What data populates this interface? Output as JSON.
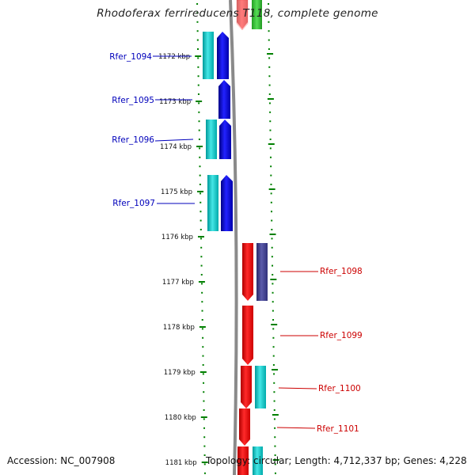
{
  "title": "Rhodoferax ferrireducens T118, complete genome",
  "accession_text": "Accession: NC_007908",
  "topology_text": "Topology: circular; Length: 4,712,337 bp; Genes: 4,228",
  "colors": {
    "left_label": "#0000bb",
    "right_label": "#cc0000",
    "tick": "#008000",
    "backbone": "#888888",
    "gene_blue": "#0000ee",
    "gene_cyan": "#00c8c8",
    "gene_red": "#ff0000",
    "gene_navy": "#3a3a8c",
    "gene_green": "#33cc33",
    "gene_pink": "#ffcccc"
  },
  "scale_labels": [
    "1172 kbp",
    "1173 kbp",
    "1174 kbp",
    "1175 kbp",
    "1176 kbp",
    "1177 kbp",
    "1178 kbp",
    "1179 kbp",
    "1180 kbp",
    "1181 kbp"
  ],
  "genes": {
    "left": [
      {
        "label": "Rfer_1094",
        "kind": "blue_cyan_pair"
      },
      {
        "label": "Rfer_1095",
        "kind": "blue_single"
      },
      {
        "label": "Rfer_1096",
        "kind": "blue_cyan_pair"
      },
      {
        "label": "Rfer_1097",
        "kind": "blue_cyan_pair"
      }
    ],
    "right": [
      {
        "label": "Rfer_1098",
        "kind": "red_navy_pair"
      },
      {
        "label": "Rfer_1099",
        "kind": "red_single"
      },
      {
        "label": "Rfer_1100",
        "kind": "red_cyan_pair"
      },
      {
        "label": "Rfer_1101",
        "kind": "red_single"
      }
    ]
  }
}
